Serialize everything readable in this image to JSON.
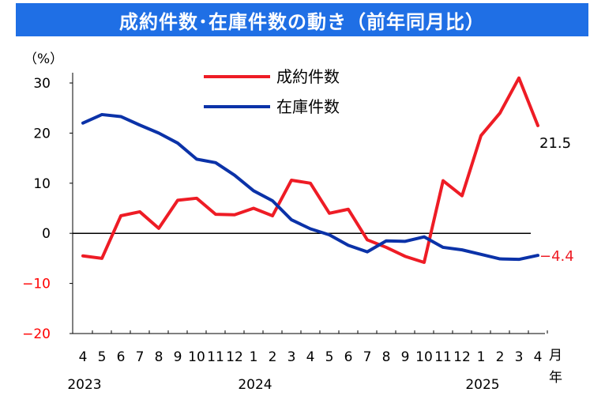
{
  "chart_data": {
    "type": "line",
    "title": "成約件数･在庫件数の動き（前年同月比）",
    "y_unit": "（%）",
    "ylim": [
      -20,
      30
    ],
    "y_ticks": [
      30,
      20,
      10,
      0,
      -10,
      -20
    ],
    "x_unit": "月年",
    "categories": [
      "4",
      "5",
      "6",
      "7",
      "8",
      "9",
      "10",
      "11",
      "12",
      "1",
      "2",
      "3",
      "4",
      "5",
      "6",
      "7",
      "8",
      "9",
      "10",
      "11",
      "12",
      "1",
      "2",
      "3",
      "4"
    ],
    "years": [
      {
        "label": "2023",
        "index": 0
      },
      {
        "label": "2024",
        "index": 9
      },
      {
        "label": "2025",
        "index": 21
      }
    ],
    "legend_position": "top-center",
    "series": [
      {
        "name": "成約件数",
        "color": "#ee1c25",
        "values": [
          -4.5,
          -5.0,
          3.5,
          4.3,
          1.0,
          6.6,
          7.0,
          3.8,
          3.7,
          5.0,
          3.5,
          10.6,
          10.0,
          4.0,
          4.8,
          -1.3,
          -2.8,
          -4.6,
          -5.8,
          10.5,
          7.5,
          19.5,
          24.0,
          31.0,
          21.5
        ],
        "end_label": "21.5",
        "end_label_color": "#000000"
      },
      {
        "name": "在庫件数",
        "color": "#0b32a8",
        "values": [
          22.0,
          23.7,
          23.3,
          21.6,
          20.0,
          18.0,
          14.8,
          14.1,
          11.6,
          8.5,
          6.5,
          2.7,
          0.9,
          -0.3,
          -2.4,
          -3.7,
          -1.5,
          -1.6,
          -0.7,
          -2.8,
          -3.3,
          -4.2,
          -5.1,
          -5.2,
          -4.4
        ],
        "end_label": "-4.4",
        "end_label_color": "#ee1c25"
      }
    ]
  }
}
